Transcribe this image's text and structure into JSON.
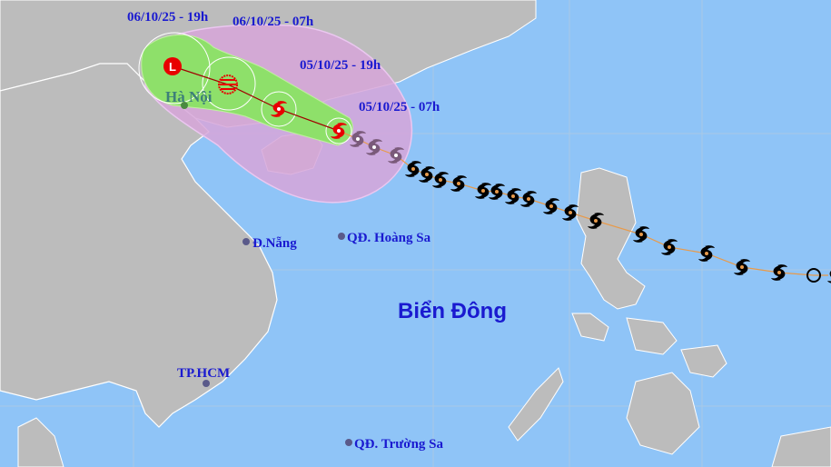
{
  "map": {
    "forecast_times": [
      "06/10/25 - 19h",
      "06/10/25 - 07h",
      "05/10/25 - 19h",
      "05/10/25 - 07h"
    ],
    "places": {
      "hanoi": "Hà Nội",
      "danang": "Đ.Nẵng",
      "hoangsa": "QĐ. Hoàng Sa",
      "sea": "Biển Đông",
      "hcm": "TP.HCM",
      "truongsa": "QĐ. Trường Sa"
    },
    "storm_icons": {
      "past": "typhoon-icon-black",
      "past_recent": "typhoon-icon-purple",
      "current": "typhoon-icon-red",
      "forecast_storm": "typhoon-icon-red",
      "forecast_depression": "tropical-depression-hatched-icon",
      "forecast_low": "low-pressure-L-icon",
      "origin": "tropical-depression-circle-icon"
    },
    "low_symbol": "L",
    "colors": {
      "sea": "#8fc4f7",
      "land": "#bcbcbc",
      "danger_zone": "#d7a6d9",
      "cone": "#8ee06a",
      "track": "#e89a4a",
      "forecast_track": "#a00000",
      "storm_red": "#e80000",
      "label_text": "#1a1ad0"
    }
  }
}
